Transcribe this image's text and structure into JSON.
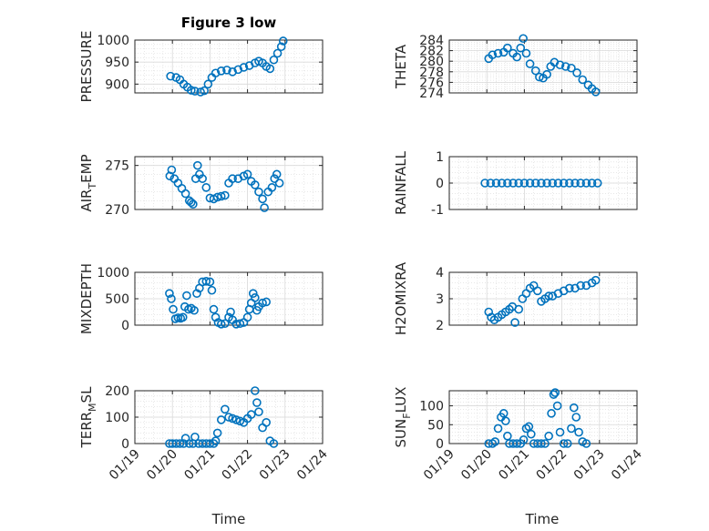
{
  "figure_title": "Figure 3 low",
  "marker_color": "#0072bd",
  "chart_data": [
    {
      "type": "scatter",
      "ylabel_main": "PRESSURE",
      "ylabel_sub": "",
      "ylim": [
        880,
        1000
      ],
      "yticks": [
        900,
        950,
        1000
      ],
      "x": [
        "01/19",
        "01/20",
        "01/21",
        "01/22",
        "01/23",
        "01/24"
      ],
      "series": [
        {
          "points": [
            [
              0.95,
              918
            ],
            [
              1.1,
              915
            ],
            [
              1.2,
              910
            ],
            [
              1.3,
              900
            ],
            [
              1.4,
              893
            ],
            [
              1.5,
              886
            ],
            [
              1.6,
              884
            ],
            [
              1.75,
              882
            ],
            [
              1.85,
              885
            ],
            [
              1.95,
              900
            ],
            [
              2.05,
              915
            ],
            [
              2.15,
              925
            ],
            [
              2.3,
              930
            ],
            [
              2.45,
              932
            ],
            [
              2.6,
              928
            ],
            [
              2.75,
              933
            ],
            [
              2.9,
              938
            ],
            [
              3.05,
              942
            ],
            [
              3.2,
              948
            ],
            [
              3.3,
              952
            ],
            [
              3.4,
              948
            ],
            [
              3.5,
              940
            ],
            [
              3.6,
              935
            ],
            [
              3.7,
              955
            ],
            [
              3.8,
              970
            ],
            [
              3.9,
              985
            ],
            [
              3.95,
              998
            ]
          ]
        }
      ]
    },
    {
      "type": "scatter",
      "ylabel_main": "THETA",
      "ylabel_sub": "",
      "ylim": [
        274,
        284
      ],
      "yticks": [
        274,
        276,
        278,
        280,
        282,
        284
      ],
      "x": [
        "01/19",
        "01/20",
        "01/21",
        "01/22",
        "01/23",
        "01/24"
      ],
      "series": [
        {
          "points": [
            [
              1.05,
              280.5
            ],
            [
              1.15,
              281.2
            ],
            [
              1.3,
              281.5
            ],
            [
              1.45,
              281.7
            ],
            [
              1.55,
              282.5
            ],
            [
              1.7,
              281.5
            ],
            [
              1.8,
              280.8
            ],
            [
              1.9,
              282.5
            ],
            [
              1.97,
              284.3
            ],
            [
              2.05,
              281.5
            ],
            [
              2.15,
              279.5
            ],
            [
              2.3,
              278.2
            ],
            [
              2.4,
              277.0
            ],
            [
              2.5,
              276.8
            ],
            [
              2.6,
              277.5
            ],
            [
              2.7,
              279.0
            ],
            [
              2.8,
              279.8
            ],
            [
              2.95,
              279.3
            ],
            [
              3.1,
              279.0
            ],
            [
              3.25,
              278.7
            ],
            [
              3.4,
              277.8
            ],
            [
              3.55,
              276.5
            ],
            [
              3.7,
              275.5
            ],
            [
              3.8,
              274.8
            ],
            [
              3.9,
              274.2
            ]
          ]
        }
      ]
    },
    {
      "type": "scatter",
      "ylabel_main": "AIR",
      "ylabel_sub": "T",
      "ylabel_tail": "EMP",
      "ylim": [
        270,
        276
      ],
      "yticks": [
        270,
        275
      ],
      "x": [
        "01/19",
        "01/20",
        "01/21",
        "01/22",
        "01/23",
        "01/24"
      ],
      "series": [
        {
          "points": [
            [
              0.93,
              273.8
            ],
            [
              0.98,
              274.5
            ],
            [
              1.05,
              273.5
            ],
            [
              1.15,
              273.0
            ],
            [
              1.25,
              272.4
            ],
            [
              1.35,
              271.8
            ],
            [
              1.45,
              271.0
            ],
            [
              1.5,
              270.8
            ],
            [
              1.55,
              270.6
            ],
            [
              1.62,
              273.5
            ],
            [
              1.67,
              275.0
            ],
            [
              1.72,
              274.0
            ],
            [
              1.8,
              273.5
            ],
            [
              1.9,
              272.5
            ],
            [
              2.0,
              271.3
            ],
            [
              2.1,
              271.2
            ],
            [
              2.2,
              271.4
            ],
            [
              2.3,
              271.5
            ],
            [
              2.4,
              271.6
            ],
            [
              2.5,
              273.0
            ],
            [
              2.6,
              273.5
            ],
            [
              2.75,
              273.5
            ],
            [
              2.9,
              273.8
            ],
            [
              3.0,
              274.0
            ],
            [
              3.1,
              273.2
            ],
            [
              3.2,
              272.8
            ],
            [
              3.3,
              272.0
            ],
            [
              3.4,
              271.2
            ],
            [
              3.45,
              270.2
            ],
            [
              3.55,
              272.0
            ],
            [
              3.65,
              272.5
            ],
            [
              3.72,
              273.5
            ],
            [
              3.78,
              274.0
            ],
            [
              3.85,
              273.0
            ]
          ]
        }
      ]
    },
    {
      "type": "scatter",
      "ylabel_main": "RAINFALL",
      "ylabel_sub": "",
      "ylim": [
        -1,
        1
      ],
      "yticks": [
        -1,
        0,
        1
      ],
      "x": [
        "01/19",
        "01/20",
        "01/21",
        "01/22",
        "01/23",
        "01/24"
      ],
      "series": [
        {
          "points": [
            [
              0.95,
              0
            ],
            [
              1.1,
              0
            ],
            [
              1.25,
              0
            ],
            [
              1.4,
              0
            ],
            [
              1.55,
              0
            ],
            [
              1.7,
              0
            ],
            [
              1.85,
              0
            ],
            [
              2.0,
              0
            ],
            [
              2.15,
              0
            ],
            [
              2.3,
              0
            ],
            [
              2.45,
              0
            ],
            [
              2.6,
              0
            ],
            [
              2.75,
              0
            ],
            [
              2.9,
              0
            ],
            [
              3.05,
              0
            ],
            [
              3.2,
              0
            ],
            [
              3.35,
              0
            ],
            [
              3.5,
              0
            ],
            [
              3.65,
              0
            ],
            [
              3.8,
              0
            ],
            [
              3.95,
              0
            ]
          ]
        }
      ]
    },
    {
      "type": "scatter",
      "ylabel_main": "MIXDEPTH",
      "ylabel_sub": "",
      "ylim": [
        0,
        1000
      ],
      "yticks": [
        0,
        500,
        1000
      ],
      "x": [
        "01/19",
        "01/20",
        "01/21",
        "01/22",
        "01/23",
        "01/24"
      ],
      "series": [
        {
          "points": [
            [
              0.92,
              600
            ],
            [
              0.97,
              500
            ],
            [
              1.02,
              300
            ],
            [
              1.08,
              120
            ],
            [
              1.15,
              140
            ],
            [
              1.22,
              130
            ],
            [
              1.28,
              150
            ],
            [
              1.33,
              350
            ],
            [
              1.38,
              560
            ],
            [
              1.43,
              300
            ],
            [
              1.5,
              320
            ],
            [
              1.58,
              280
            ],
            [
              1.65,
              600
            ],
            [
              1.72,
              700
            ],
            [
              1.8,
              820
            ],
            [
              1.9,
              830
            ],
            [
              2.0,
              820
            ],
            [
              2.05,
              660
            ],
            [
              2.1,
              300
            ],
            [
              2.15,
              150
            ],
            [
              2.22,
              50
            ],
            [
              2.3,
              20
            ],
            [
              2.4,
              30
            ],
            [
              2.5,
              150
            ],
            [
              2.55,
              250
            ],
            [
              2.6,
              100
            ],
            [
              2.7,
              20
            ],
            [
              2.8,
              30
            ],
            [
              2.9,
              50
            ],
            [
              3.0,
              150
            ],
            [
              3.05,
              300
            ],
            [
              3.1,
              420
            ],
            [
              3.15,
              600
            ],
            [
              3.2,
              520
            ],
            [
              3.25,
              280
            ],
            [
              3.3,
              350
            ],
            [
              3.4,
              420
            ],
            [
              3.5,
              440
            ]
          ]
        }
      ]
    },
    {
      "type": "scatter",
      "ylabel_main": "H2OMIXRA",
      "ylabel_sub": "",
      "ylim": [
        2,
        4
      ],
      "yticks": [
        2,
        3,
        4
      ],
      "x": [
        "01/19",
        "01/20",
        "01/21",
        "01/22",
        "01/23",
        "01/24"
      ],
      "series": [
        {
          "points": [
            [
              1.05,
              2.5
            ],
            [
              1.12,
              2.3
            ],
            [
              1.2,
              2.2
            ],
            [
              1.3,
              2.3
            ],
            [
              1.4,
              2.4
            ],
            [
              1.5,
              2.5
            ],
            [
              1.6,
              2.6
            ],
            [
              1.68,
              2.7
            ],
            [
              1.75,
              2.1
            ],
            [
              1.85,
              2.6
            ],
            [
              1.95,
              3.0
            ],
            [
              2.05,
              3.2
            ],
            [
              2.15,
              3.4
            ],
            [
              2.25,
              3.5
            ],
            [
              2.35,
              3.3
            ],
            [
              2.45,
              2.9
            ],
            [
              2.55,
              3.0
            ],
            [
              2.65,
              3.1
            ],
            [
              2.75,
              3.1
            ],
            [
              2.9,
              3.2
            ],
            [
              3.05,
              3.3
            ],
            [
              3.2,
              3.4
            ],
            [
              3.35,
              3.4
            ],
            [
              3.5,
              3.5
            ],
            [
              3.65,
              3.5
            ],
            [
              3.8,
              3.6
            ],
            [
              3.9,
              3.7
            ]
          ]
        }
      ]
    },
    {
      "type": "scatter",
      "ylabel_main": "TERR",
      "ylabel_sub": "M",
      "ylabel_tail": "SL",
      "ylim": [
        0,
        200
      ],
      "yticks": [
        0,
        100,
        200
      ],
      "x": [
        "01/19",
        "01/20",
        "01/21",
        "01/22",
        "01/23",
        "01/24"
      ],
      "series": [
        {
          "points": [
            [
              0.92,
              0
            ],
            [
              1.0,
              0
            ],
            [
              1.1,
              0
            ],
            [
              1.2,
              0
            ],
            [
              1.3,
              0
            ],
            [
              1.35,
              20
            ],
            [
              1.45,
              0
            ],
            [
              1.55,
              0
            ],
            [
              1.6,
              25
            ],
            [
              1.7,
              0
            ],
            [
              1.8,
              0
            ],
            [
              1.9,
              0
            ],
            [
              2.0,
              0
            ],
            [
              2.1,
              0
            ],
            [
              2.15,
              10
            ],
            [
              2.2,
              40
            ],
            [
              2.3,
              90
            ],
            [
              2.4,
              130
            ],
            [
              2.5,
              100
            ],
            [
              2.6,
              95
            ],
            [
              2.7,
              90
            ],
            [
              2.8,
              85
            ],
            [
              2.9,
              80
            ],
            [
              3.0,
              95
            ],
            [
              3.1,
              110
            ],
            [
              3.2,
              200
            ],
            [
              3.25,
              155
            ],
            [
              3.3,
              120
            ],
            [
              3.4,
              60
            ],
            [
              3.5,
              80
            ],
            [
              3.6,
              10
            ],
            [
              3.7,
              0
            ]
          ]
        }
      ]
    },
    {
      "type": "scatter",
      "ylabel_main": "SUN",
      "ylabel_sub": "F",
      "ylabel_tail": "LUX",
      "ylim": [
        0,
        140
      ],
      "yticks": [
        0,
        50,
        100
      ],
      "x": [
        "01/19",
        "01/20",
        "01/21",
        "01/22",
        "01/23",
        "01/24"
      ],
      "series": [
        {
          "points": [
            [
              1.05,
              0
            ],
            [
              1.15,
              0
            ],
            [
              1.22,
              5
            ],
            [
              1.3,
              40
            ],
            [
              1.38,
              70
            ],
            [
              1.45,
              80
            ],
            [
              1.5,
              60
            ],
            [
              1.55,
              20
            ],
            [
              1.6,
              0
            ],
            [
              1.7,
              0
            ],
            [
              1.8,
              0
            ],
            [
              1.9,
              0
            ],
            [
              1.98,
              10
            ],
            [
              2.05,
              40
            ],
            [
              2.12,
              45
            ],
            [
              2.18,
              25
            ],
            [
              2.25,
              0
            ],
            [
              2.35,
              0
            ],
            [
              2.45,
              0
            ],
            [
              2.55,
              0
            ],
            [
              2.65,
              20
            ],
            [
              2.72,
              80
            ],
            [
              2.78,
              130
            ],
            [
              2.82,
              135
            ],
            [
              2.88,
              100
            ],
            [
              2.95,
              30
            ],
            [
              3.05,
              0
            ],
            [
              3.15,
              0
            ],
            [
              3.25,
              40
            ],
            [
              3.32,
              95
            ],
            [
              3.38,
              70
            ],
            [
              3.45,
              30
            ],
            [
              3.55,
              5
            ],
            [
              3.65,
              0
            ]
          ]
        }
      ]
    }
  ],
  "xlabel": "Time"
}
